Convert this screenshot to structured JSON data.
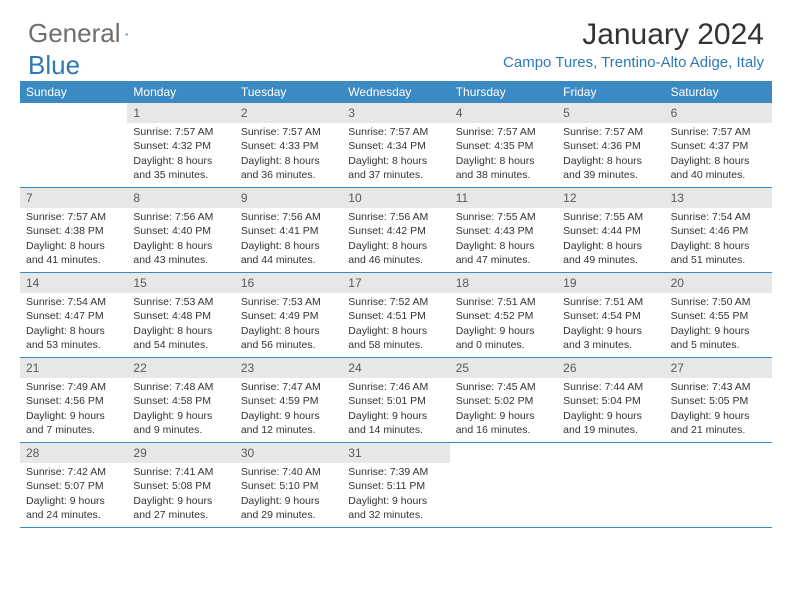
{
  "logo": {
    "text1": "General",
    "text2": "Blue"
  },
  "title": "January 2024",
  "location": "Campo Tures, Trentino-Alto Adige, Italy",
  "colors": {
    "header_bg": "#3b8ac4",
    "daynum_bg": "#e7e7e7",
    "rule": "#3b8ac4",
    "accent": "#2f78b7",
    "text": "#333333",
    "muted": "#6e6e6e"
  },
  "weekdays": [
    "Sunday",
    "Monday",
    "Tuesday",
    "Wednesday",
    "Thursday",
    "Friday",
    "Saturday"
  ],
  "weeks": [
    [
      {
        "n": "",
        "sr": "",
        "ss": "",
        "dl1": "",
        "dl2": ""
      },
      {
        "n": "1",
        "sr": "Sunrise: 7:57 AM",
        "ss": "Sunset: 4:32 PM",
        "dl1": "Daylight: 8 hours",
        "dl2": "and 35 minutes."
      },
      {
        "n": "2",
        "sr": "Sunrise: 7:57 AM",
        "ss": "Sunset: 4:33 PM",
        "dl1": "Daylight: 8 hours",
        "dl2": "and 36 minutes."
      },
      {
        "n": "3",
        "sr": "Sunrise: 7:57 AM",
        "ss": "Sunset: 4:34 PM",
        "dl1": "Daylight: 8 hours",
        "dl2": "and 37 minutes."
      },
      {
        "n": "4",
        "sr": "Sunrise: 7:57 AM",
        "ss": "Sunset: 4:35 PM",
        "dl1": "Daylight: 8 hours",
        "dl2": "and 38 minutes."
      },
      {
        "n": "5",
        "sr": "Sunrise: 7:57 AM",
        "ss": "Sunset: 4:36 PM",
        "dl1": "Daylight: 8 hours",
        "dl2": "and 39 minutes."
      },
      {
        "n": "6",
        "sr": "Sunrise: 7:57 AM",
        "ss": "Sunset: 4:37 PM",
        "dl1": "Daylight: 8 hours",
        "dl2": "and 40 minutes."
      }
    ],
    [
      {
        "n": "7",
        "sr": "Sunrise: 7:57 AM",
        "ss": "Sunset: 4:38 PM",
        "dl1": "Daylight: 8 hours",
        "dl2": "and 41 minutes."
      },
      {
        "n": "8",
        "sr": "Sunrise: 7:56 AM",
        "ss": "Sunset: 4:40 PM",
        "dl1": "Daylight: 8 hours",
        "dl2": "and 43 minutes."
      },
      {
        "n": "9",
        "sr": "Sunrise: 7:56 AM",
        "ss": "Sunset: 4:41 PM",
        "dl1": "Daylight: 8 hours",
        "dl2": "and 44 minutes."
      },
      {
        "n": "10",
        "sr": "Sunrise: 7:56 AM",
        "ss": "Sunset: 4:42 PM",
        "dl1": "Daylight: 8 hours",
        "dl2": "and 46 minutes."
      },
      {
        "n": "11",
        "sr": "Sunrise: 7:55 AM",
        "ss": "Sunset: 4:43 PM",
        "dl1": "Daylight: 8 hours",
        "dl2": "and 47 minutes."
      },
      {
        "n": "12",
        "sr": "Sunrise: 7:55 AM",
        "ss": "Sunset: 4:44 PM",
        "dl1": "Daylight: 8 hours",
        "dl2": "and 49 minutes."
      },
      {
        "n": "13",
        "sr": "Sunrise: 7:54 AM",
        "ss": "Sunset: 4:46 PM",
        "dl1": "Daylight: 8 hours",
        "dl2": "and 51 minutes."
      }
    ],
    [
      {
        "n": "14",
        "sr": "Sunrise: 7:54 AM",
        "ss": "Sunset: 4:47 PM",
        "dl1": "Daylight: 8 hours",
        "dl2": "and 53 minutes."
      },
      {
        "n": "15",
        "sr": "Sunrise: 7:53 AM",
        "ss": "Sunset: 4:48 PM",
        "dl1": "Daylight: 8 hours",
        "dl2": "and 54 minutes."
      },
      {
        "n": "16",
        "sr": "Sunrise: 7:53 AM",
        "ss": "Sunset: 4:49 PM",
        "dl1": "Daylight: 8 hours",
        "dl2": "and 56 minutes."
      },
      {
        "n": "17",
        "sr": "Sunrise: 7:52 AM",
        "ss": "Sunset: 4:51 PM",
        "dl1": "Daylight: 8 hours",
        "dl2": "and 58 minutes."
      },
      {
        "n": "18",
        "sr": "Sunrise: 7:51 AM",
        "ss": "Sunset: 4:52 PM",
        "dl1": "Daylight: 9 hours",
        "dl2": "and 0 minutes."
      },
      {
        "n": "19",
        "sr": "Sunrise: 7:51 AM",
        "ss": "Sunset: 4:54 PM",
        "dl1": "Daylight: 9 hours",
        "dl2": "and 3 minutes."
      },
      {
        "n": "20",
        "sr": "Sunrise: 7:50 AM",
        "ss": "Sunset: 4:55 PM",
        "dl1": "Daylight: 9 hours",
        "dl2": "and 5 minutes."
      }
    ],
    [
      {
        "n": "21",
        "sr": "Sunrise: 7:49 AM",
        "ss": "Sunset: 4:56 PM",
        "dl1": "Daylight: 9 hours",
        "dl2": "and 7 minutes."
      },
      {
        "n": "22",
        "sr": "Sunrise: 7:48 AM",
        "ss": "Sunset: 4:58 PM",
        "dl1": "Daylight: 9 hours",
        "dl2": "and 9 minutes."
      },
      {
        "n": "23",
        "sr": "Sunrise: 7:47 AM",
        "ss": "Sunset: 4:59 PM",
        "dl1": "Daylight: 9 hours",
        "dl2": "and 12 minutes."
      },
      {
        "n": "24",
        "sr": "Sunrise: 7:46 AM",
        "ss": "Sunset: 5:01 PM",
        "dl1": "Daylight: 9 hours",
        "dl2": "and 14 minutes."
      },
      {
        "n": "25",
        "sr": "Sunrise: 7:45 AM",
        "ss": "Sunset: 5:02 PM",
        "dl1": "Daylight: 9 hours",
        "dl2": "and 16 minutes."
      },
      {
        "n": "26",
        "sr": "Sunrise: 7:44 AM",
        "ss": "Sunset: 5:04 PM",
        "dl1": "Daylight: 9 hours",
        "dl2": "and 19 minutes."
      },
      {
        "n": "27",
        "sr": "Sunrise: 7:43 AM",
        "ss": "Sunset: 5:05 PM",
        "dl1": "Daylight: 9 hours",
        "dl2": "and 21 minutes."
      }
    ],
    [
      {
        "n": "28",
        "sr": "Sunrise: 7:42 AM",
        "ss": "Sunset: 5:07 PM",
        "dl1": "Daylight: 9 hours",
        "dl2": "and 24 minutes."
      },
      {
        "n": "29",
        "sr": "Sunrise: 7:41 AM",
        "ss": "Sunset: 5:08 PM",
        "dl1": "Daylight: 9 hours",
        "dl2": "and 27 minutes."
      },
      {
        "n": "30",
        "sr": "Sunrise: 7:40 AM",
        "ss": "Sunset: 5:10 PM",
        "dl1": "Daylight: 9 hours",
        "dl2": "and 29 minutes."
      },
      {
        "n": "31",
        "sr": "Sunrise: 7:39 AM",
        "ss": "Sunset: 5:11 PM",
        "dl1": "Daylight: 9 hours",
        "dl2": "and 32 minutes."
      },
      {
        "n": "",
        "sr": "",
        "ss": "",
        "dl1": "",
        "dl2": ""
      },
      {
        "n": "",
        "sr": "",
        "ss": "",
        "dl1": "",
        "dl2": ""
      },
      {
        "n": "",
        "sr": "",
        "ss": "",
        "dl1": "",
        "dl2": ""
      }
    ]
  ]
}
